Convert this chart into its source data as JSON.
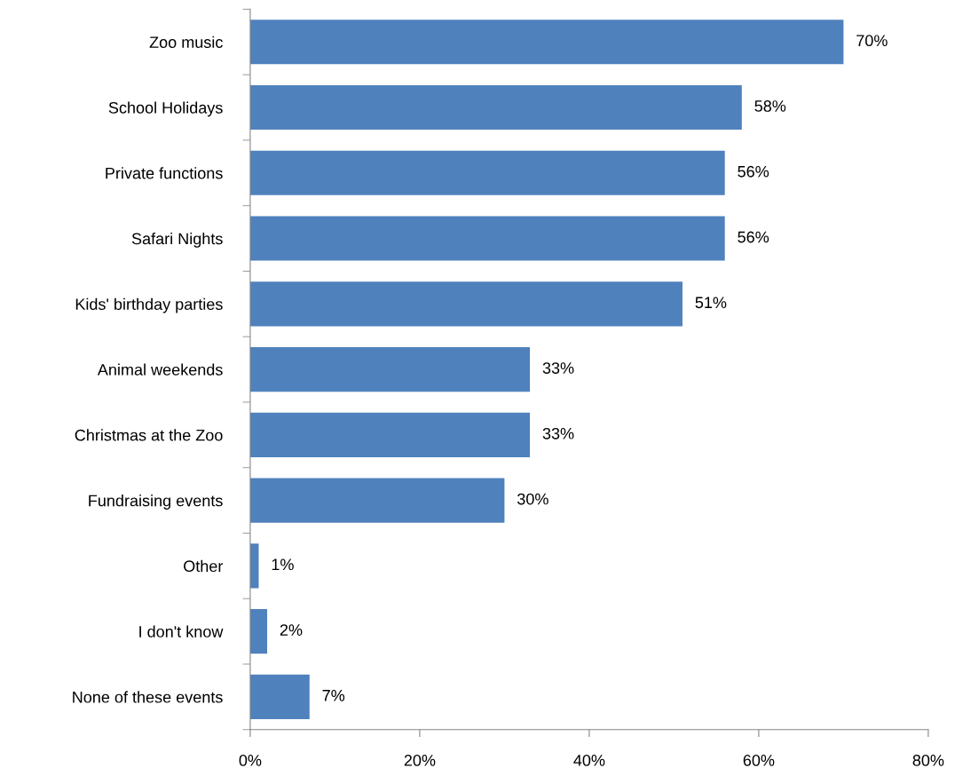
{
  "chart_data": {
    "type": "bar",
    "orientation": "horizontal",
    "categories": [
      "Zoo music",
      "School Holidays",
      "Private functions",
      "Safari Nights",
      "Kids' birthday parties",
      "Animal weekends",
      "Christmas at the Zoo",
      "Fundraising events",
      "Other",
      "I don't know",
      "None of these events"
    ],
    "values": [
      70,
      58,
      56,
      56,
      51,
      33,
      33,
      30,
      1,
      2,
      7
    ],
    "value_labels": [
      "70%",
      "58%",
      "56%",
      "56%",
      "51%",
      "33%",
      "33%",
      "30%",
      "1%",
      "2%",
      "7%"
    ],
    "color": "#4f81bd",
    "xlim": [
      0,
      80
    ],
    "xticks": [
      {
        "value": 0,
        "label": "0%"
      },
      {
        "value": 20,
        "label": "20%"
      },
      {
        "value": 40,
        "label": "40%"
      },
      {
        "value": 60,
        "label": "60%"
      },
      {
        "value": 80,
        "label": "80%"
      }
    ],
    "grid": false,
    "legend": false
  }
}
